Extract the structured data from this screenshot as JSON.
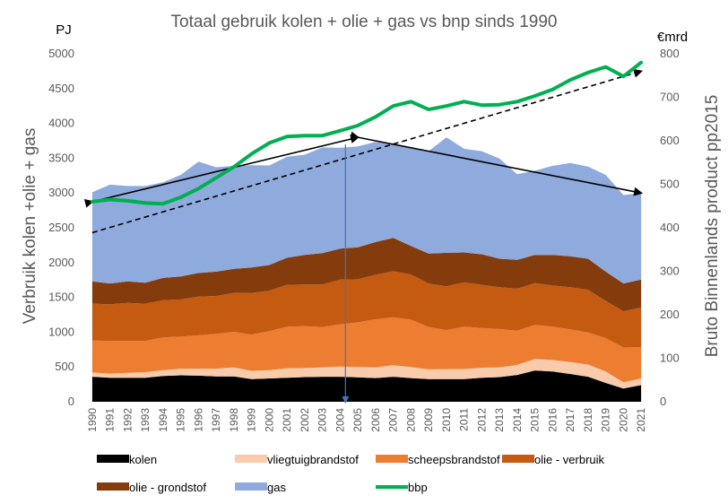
{
  "chart_data": {
    "type": "area",
    "title": "Totaal gebruik kolen + olie + gas vs bnp sinds 1990",
    "ylabel": "Verbruik kolen +olie + gas",
    "y2label": "Bruto Binnenlands product pp2015",
    "yunit": "PJ",
    "y2unit": "€mrd",
    "ylim": [
      0,
      5000
    ],
    "y2lim": [
      0,
      800
    ],
    "yticks": [
      "0",
      "500",
      "1000",
      "1500",
      "2000",
      "2500",
      "3000",
      "3500",
      "4000",
      "4500",
      "5000"
    ],
    "y2ticks": [
      "0",
      "100",
      "200",
      "300",
      "400",
      "500",
      "600",
      "700",
      "800"
    ],
    "categories": [
      "1990",
      "1991",
      "1992",
      "1993",
      "1994",
      "1995",
      "1996",
      "1997",
      "1998",
      "1999",
      "2000",
      "2001",
      "2002",
      "2003",
      "2004",
      "2005",
      "2006",
      "2007",
      "2008",
      "2009",
      "2010",
      "2011",
      "2012",
      "2013",
      "2014",
      "2015",
      "2016",
      "2017",
      "2018",
      "2019",
      "2020",
      "2021"
    ],
    "stacked_series": [
      {
        "name": "kolen",
        "color": "#000000",
        "values": [
          360,
          345,
          345,
          345,
          370,
          380,
          375,
          365,
          365,
          325,
          335,
          345,
          355,
          360,
          360,
          350,
          340,
          360,
          340,
          325,
          325,
          325,
          345,
          355,
          385,
          450,
          435,
          400,
          360,
          270,
          190,
          240
        ]
      },
      {
        "name": "vliegtuigbrandstof",
        "color": "#f8cbad",
        "values": [
          60,
          60,
          70,
          80,
          85,
          95,
          100,
          110,
          130,
          120,
          120,
          135,
          130,
          135,
          145,
          150,
          155,
          165,
          160,
          140,
          145,
          145,
          145,
          140,
          145,
          165,
          165,
          170,
          175,
          165,
          90,
          95
        ]
      },
      {
        "name": "scheepsbrandstof",
        "color": "#ed7d31",
        "values": [
          460,
          470,
          460,
          450,
          470,
          460,
          480,
          500,
          510,
          520,
          560,
          600,
          600,
          580,
          610,
          640,
          690,
          690,
          680,
          610,
          560,
          610,
          570,
          550,
          490,
          490,
          480,
          470,
          460,
          480,
          500,
          450
        ]
      },
      {
        "name": "olie - verbruik",
        "color": "#c55a11",
        "values": [
          530,
          525,
          545,
          535,
          535,
          535,
          555,
          545,
          560,
          600,
          580,
          600,
          600,
          610,
          640,
          620,
          640,
          660,
          650,
          625,
          630,
          635,
          620,
          600,
          605,
          600,
          590,
          605,
          615,
          535,
          520,
          570
        ]
      },
      {
        "name": "olie - grondstof",
        "color": "#843c0c",
        "values": [
          320,
          300,
          310,
          300,
          320,
          330,
          340,
          350,
          345,
          365,
          370,
          390,
          425,
          450,
          445,
          460,
          470,
          480,
          410,
          430,
          480,
          430,
          440,
          410,
          415,
          405,
          440,
          445,
          445,
          420,
          400,
          400
        ]
      },
      {
        "name": "gas",
        "color": "#8faadc",
        "values": [
          1280,
          1420,
          1370,
          1390,
          1375,
          1460,
          1600,
          1500,
          1480,
          1470,
          1430,
          1450,
          1440,
          1520,
          1450,
          1450,
          1440,
          1355,
          1420,
          1470,
          1660,
          1490,
          1480,
          1440,
          1230,
          1210,
          1280,
          1340,
          1325,
          1390,
          1270,
          1245
        ]
      }
    ],
    "line_series": {
      "name": "bbp",
      "color": "#00b050",
      "values": [
        460,
        465,
        462,
        457,
        455,
        470,
        490,
        515,
        540,
        570,
        595,
        610,
        612,
        612,
        623,
        635,
        655,
        680,
        690,
        672,
        680,
        690,
        682,
        683,
        690,
        703,
        718,
        740,
        757,
        770,
        748,
        780
      ]
    },
    "annotations": [
      {
        "kind": "trend-arrow",
        "from": [
          1990,
          2875
        ],
        "to": [
          2005,
          3800
        ],
        "color": "#000000"
      },
      {
        "kind": "trend-arrow",
        "from": [
          2005,
          3800
        ],
        "to": [
          2021,
          3000
        ],
        "color": "#000000"
      },
      {
        "kind": "trend-dashed-arrow",
        "from": [
          1990,
          2430
        ],
        "to": [
          2021,
          4750
        ],
        "color": "#000000"
      },
      {
        "kind": "marker-arrow",
        "from": [
          2004.3,
          3700
        ],
        "to": [
          2004.3,
          0
        ],
        "color": "#4472c4"
      }
    ],
    "legend_position": "bottom",
    "grid": false
  }
}
